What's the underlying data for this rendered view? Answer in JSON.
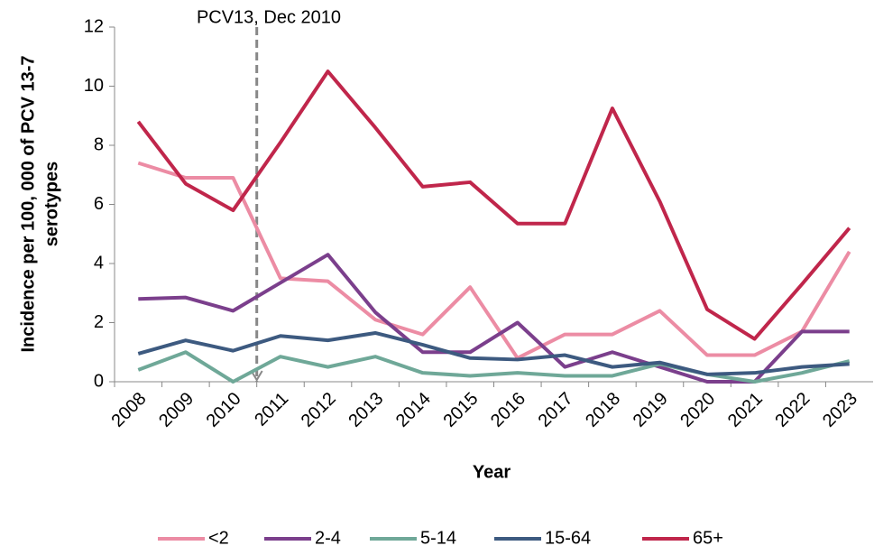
{
  "chart_data": {
    "type": "line",
    "annotation": "PCV13, Dec 2010",
    "xlabel": "Year",
    "ylabel": [
      "Incidence per 100, 000 of PCV 13-7",
      "serotypes"
    ],
    "categories": [
      "2008",
      "2009",
      "2010",
      "2011",
      "2012",
      "2013",
      "2014",
      "2015",
      "2016",
      "2017",
      "2018",
      "2019",
      "2020",
      "2021",
      "2022",
      "2023"
    ],
    "ylim": [
      0,
      12
    ],
    "yticks": [
      0,
      2,
      4,
      6,
      8,
      10,
      12
    ],
    "series": [
      {
        "name": "<2",
        "color": "#ec8ca4",
        "values": [
          7.4,
          6.9,
          6.9,
          3.5,
          3.4,
          2.1,
          1.6,
          3.2,
          0.8,
          1.6,
          1.6,
          2.4,
          0.9,
          0.9,
          1.7,
          4.4
        ]
      },
      {
        "name": "2-4",
        "color": "#7b3f8c",
        "values": [
          2.8,
          2.85,
          2.4,
          3.35,
          4.3,
          2.35,
          1.0,
          1.0,
          2.0,
          0.5,
          1.0,
          0.5,
          0.0,
          0.0,
          1.7,
          1.7
        ]
      },
      {
        "name": "5-14",
        "color": "#6fa898",
        "values": [
          0.4,
          1.0,
          0.0,
          0.85,
          0.5,
          0.85,
          0.3,
          0.2,
          0.3,
          0.2,
          0.2,
          0.6,
          0.25,
          0.0,
          0.3,
          0.7
        ]
      },
      {
        "name": "15-64",
        "color": "#3d5a80",
        "values": [
          0.95,
          1.4,
          1.05,
          1.55,
          1.4,
          1.65,
          1.25,
          0.8,
          0.75,
          0.9,
          0.5,
          0.65,
          0.25,
          0.3,
          0.5,
          0.6
        ]
      },
      {
        "name": "65+",
        "color": "#c0264b",
        "values": [
          8.8,
          6.7,
          5.8,
          8.1,
          10.5,
          8.6,
          6.6,
          6.75,
          5.35,
          5.35,
          9.25,
          6.1,
          2.45,
          1.45,
          3.3,
          5.2
        ]
      }
    ]
  }
}
